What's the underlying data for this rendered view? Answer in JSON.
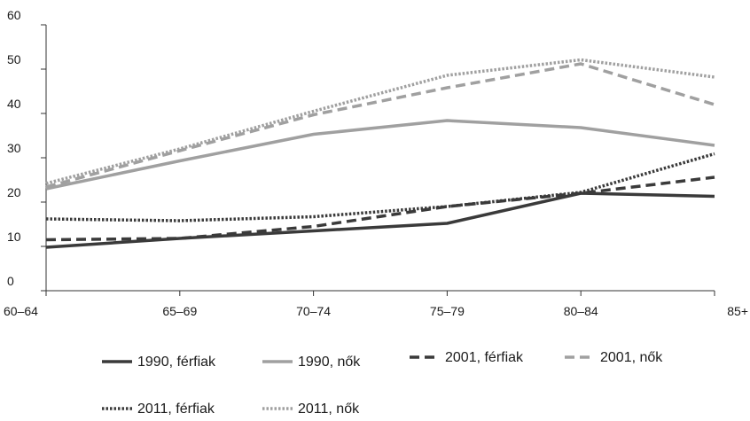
{
  "chart_data": {
    "type": "line",
    "categories": [
      "60–64",
      "65–69",
      "70–74",
      "75–79",
      "80–84",
      "85+"
    ],
    "ylim": [
      0,
      60
    ],
    "yticks": [
      0,
      10,
      20,
      30,
      40,
      50,
      60
    ],
    "grid": false,
    "legend_position": "bottom",
    "series": [
      {
        "name": "1990, férfiak",
        "values": [
          9.8,
          11.8,
          13.5,
          15.2,
          22.0,
          21.3
        ],
        "color": "#3a3a3a",
        "style": "solid"
      },
      {
        "name": "1990, nők",
        "values": [
          23.0,
          29.3,
          35.3,
          38.4,
          36.8,
          32.8
        ],
        "color": "#a0a0a0",
        "style": "solid"
      },
      {
        "name": "2001, férfiak",
        "values": [
          11.5,
          11.8,
          14.5,
          19.0,
          22.0,
          25.6
        ],
        "color": "#3a3a3a",
        "style": "dashed"
      },
      {
        "name": "2001, nők",
        "values": [
          23.4,
          31.6,
          39.7,
          45.8,
          51.2,
          42.0
        ],
        "color": "#a0a0a0",
        "style": "dashed"
      },
      {
        "name": "2011, férfiak",
        "values": [
          16.2,
          15.8,
          16.7,
          19.0,
          22.2,
          30.9
        ],
        "color": "#3a3a3a",
        "style": "dotted"
      },
      {
        "name": "2011, nők",
        "values": [
          24.2,
          32.0,
          40.5,
          48.6,
          52.1,
          48.2
        ],
        "color": "#a0a0a0",
        "style": "dotted"
      }
    ]
  }
}
